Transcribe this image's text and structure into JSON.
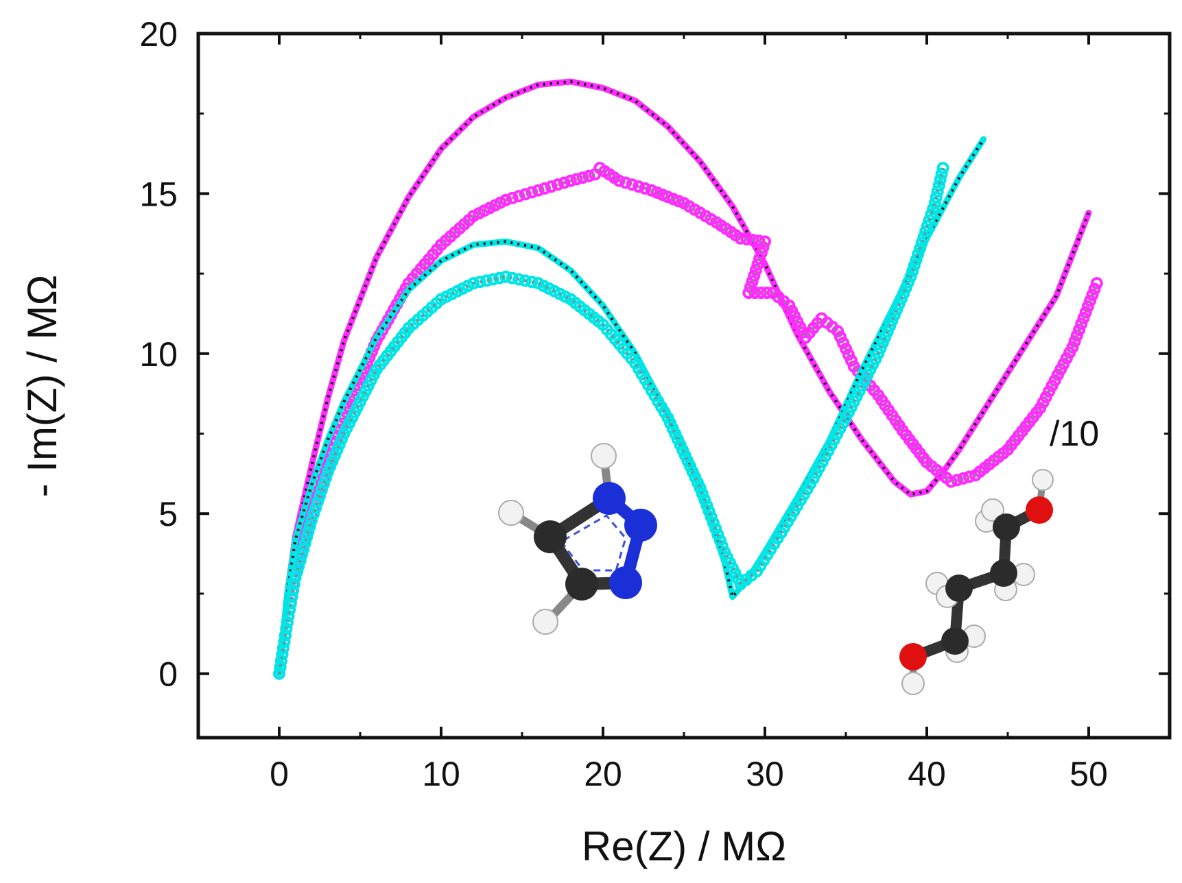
{
  "chart_data": {
    "type": "scatter",
    "xlabel": "Re(Z) / MΩ",
    "ylabel": "- Im(Z) / MΩ",
    "xlim": [
      -5,
      55
    ],
    "ylim": [
      -2,
      20
    ],
    "xticks": [
      0,
      10,
      20,
      30,
      40,
      50
    ],
    "yticks": [
      0,
      5,
      10,
      15,
      20
    ],
    "annotations": [
      "/10"
    ],
    "series": [
      {
        "color": "#ff2bff",
        "marker": "dot",
        "points": [
          [
            0,
            0
          ],
          [
            0.5,
            2.5
          ],
          [
            1,
            4.3
          ],
          [
            2,
            6.5
          ],
          [
            3,
            8.6
          ],
          [
            4,
            10.4
          ],
          [
            6,
            13
          ],
          [
            8,
            14.9
          ],
          [
            10,
            16.4
          ],
          [
            12,
            17.4
          ],
          [
            14,
            18
          ],
          [
            16,
            18.4
          ],
          [
            18,
            18.5
          ],
          [
            20,
            18.3
          ],
          [
            22,
            17.9
          ],
          [
            24,
            17.1
          ],
          [
            26,
            16.0
          ],
          [
            28,
            14.6
          ],
          [
            30,
            12.8
          ],
          [
            32,
            10.6
          ],
          [
            34,
            8.8
          ],
          [
            36,
            7.3
          ],
          [
            38,
            6.0
          ],
          [
            39,
            5.6
          ],
          [
            40,
            5.7
          ],
          [
            41,
            6.3
          ],
          [
            42,
            7.0
          ],
          [
            44,
            8.6
          ],
          [
            46,
            10.2
          ],
          [
            48,
            11.8
          ],
          [
            50,
            14.4
          ]
        ]
      },
      {
        "color": "#ff2bff",
        "marker": "open-circle",
        "points": [
          [
            0,
            0
          ],
          [
            0.5,
            1.6
          ],
          [
            1,
            3.2
          ],
          [
            2,
            5.0
          ],
          [
            3,
            6.5
          ],
          [
            4,
            8.0
          ],
          [
            6,
            10.4
          ],
          [
            8,
            12.2
          ],
          [
            10,
            13.4
          ],
          [
            12,
            14.3
          ],
          [
            14,
            14.8
          ],
          [
            16,
            15.1
          ],
          [
            18,
            15.4
          ],
          [
            19.5,
            15.6
          ],
          [
            19.8,
            15.8
          ],
          [
            21,
            15.4
          ],
          [
            23,
            15.1
          ],
          [
            25,
            14.7
          ],
          [
            27,
            14.1
          ],
          [
            28.5,
            13.6
          ],
          [
            30,
            13.5
          ],
          [
            29,
            11.9
          ],
          [
            30.5,
            11.9
          ],
          [
            31.5,
            11.5
          ],
          [
            32.5,
            10.5
          ],
          [
            33.5,
            11.1
          ],
          [
            34.5,
            10.7
          ],
          [
            35.5,
            9.6
          ],
          [
            37,
            8.7
          ],
          [
            38.5,
            7.6
          ],
          [
            40,
            6.6
          ],
          [
            41.5,
            6.0
          ],
          [
            43,
            6.2
          ],
          [
            45,
            7.0
          ],
          [
            47,
            8.3
          ],
          [
            49,
            10.2
          ],
          [
            50.5,
            12.2
          ]
        ]
      },
      {
        "color": "#00e5e5",
        "marker": "dot",
        "points": [
          [
            0,
            0
          ],
          [
            0.5,
            2.5
          ],
          [
            1,
            4.2
          ],
          [
            2,
            5.9
          ],
          [
            3,
            7.3
          ],
          [
            4,
            8.5
          ],
          [
            6,
            10.5
          ],
          [
            8,
            12.0
          ],
          [
            10,
            12.9
          ],
          [
            12,
            13.4
          ],
          [
            14,
            13.5
          ],
          [
            16,
            13.3
          ],
          [
            18,
            12.6
          ],
          [
            20,
            11.5
          ],
          [
            22,
            10.0
          ],
          [
            24,
            8.1
          ],
          [
            26,
            5.8
          ],
          [
            27.5,
            3.5
          ],
          [
            28,
            2.4
          ],
          [
            29,
            3.0
          ],
          [
            30,
            3.8
          ],
          [
            32,
            5.5
          ],
          [
            34,
            7.3
          ],
          [
            36,
            9.5
          ],
          [
            38,
            11.5
          ],
          [
            40,
            13.6
          ],
          [
            42,
            15.5
          ],
          [
            43.5,
            16.7
          ]
        ]
      },
      {
        "color": "#00e5e5",
        "marker": "open-circle",
        "points": [
          [
            0,
            0
          ],
          [
            0.5,
            1.6
          ],
          [
            1,
            3.0
          ],
          [
            2,
            4.8
          ],
          [
            3,
            6.3
          ],
          [
            4,
            7.5
          ],
          [
            6,
            9.5
          ],
          [
            8,
            10.8
          ],
          [
            10,
            11.7
          ],
          [
            12,
            12.2
          ],
          [
            14,
            12.4
          ],
          [
            16,
            12.2
          ],
          [
            18,
            11.7
          ],
          [
            20,
            10.9
          ],
          [
            22,
            9.7
          ],
          [
            24,
            8.0
          ],
          [
            26,
            5.8
          ],
          [
            27.5,
            3.8
          ],
          [
            28.5,
            2.8
          ],
          [
            29.5,
            3.2
          ],
          [
            31,
            4.4
          ],
          [
            33,
            6.1
          ],
          [
            35,
            8.0
          ],
          [
            37,
            10.0
          ],
          [
            39,
            12.4
          ],
          [
            40.5,
            14.7
          ],
          [
            41,
            15.8
          ]
        ]
      }
    ]
  },
  "colors": {
    "magenta": "#ff2bff",
    "cyan": "#00e5e5",
    "fit": "#111111",
    "fit_gray": "#888888"
  },
  "molecules": [
    "triazole-molecule",
    "butanediol-molecule"
  ]
}
